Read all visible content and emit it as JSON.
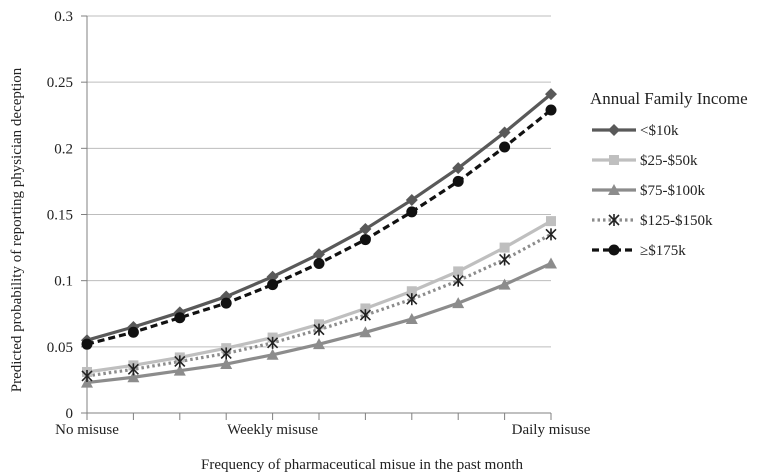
{
  "chart_data": {
    "type": "line",
    "title": "",
    "xlabel": "Frequency of pharmaceutical misue in the past month",
    "ylabel": "Predicted probability of reporting physician deception",
    "x_tick_labels": [
      {
        "index": 0,
        "label": "No misuse"
      },
      {
        "index": 4,
        "label": "Weekly misuse"
      },
      {
        "index": 10,
        "label": "Daily misuse"
      }
    ],
    "x_points": 11,
    "y_ticks": [
      "0",
      "0.05",
      "0.1",
      "0.15",
      "0.2",
      "0.25",
      "0.3"
    ],
    "ylim": [
      0,
      0.3
    ],
    "grid": "horizontal",
    "legend": {
      "title": "Annual Family Income",
      "position": "right"
    },
    "series": [
      {
        "name": "<$10k",
        "color": "#595959",
        "marker": "diamond",
        "dash": "solid",
        "values": [
          0.055,
          0.065,
          0.076,
          0.088,
          0.103,
          0.12,
          0.139,
          0.161,
          0.185,
          0.212,
          0.241
        ]
      },
      {
        "name": "$25-$50k",
        "color": "#bfbfbf",
        "marker": "square",
        "dash": "solid",
        "values": [
          0.031,
          0.036,
          0.042,
          0.049,
          0.057,
          0.067,
          0.079,
          0.092,
          0.107,
          0.125,
          0.145
        ]
      },
      {
        "name": "$75-$100k",
        "color": "#8c8c8c",
        "marker": "triangle",
        "dash": "solid",
        "values": [
          0.023,
          0.027,
          0.032,
          0.037,
          0.044,
          0.052,
          0.061,
          0.071,
          0.083,
          0.097,
          0.113
        ]
      },
      {
        "name": "$125-$150k",
        "color": "#8c8c8c",
        "marker": "asterisk",
        "dash": "dotted",
        "values": [
          0.028,
          0.033,
          0.039,
          0.045,
          0.053,
          0.063,
          0.074,
          0.086,
          0.1,
          0.116,
          0.135
        ]
      },
      {
        "name": "≥$175k",
        "color": "#111111",
        "marker": "circle",
        "dash": "dashed",
        "values": [
          0.052,
          0.061,
          0.072,
          0.083,
          0.097,
          0.113,
          0.131,
          0.152,
          0.175,
          0.201,
          0.229
        ]
      }
    ]
  }
}
